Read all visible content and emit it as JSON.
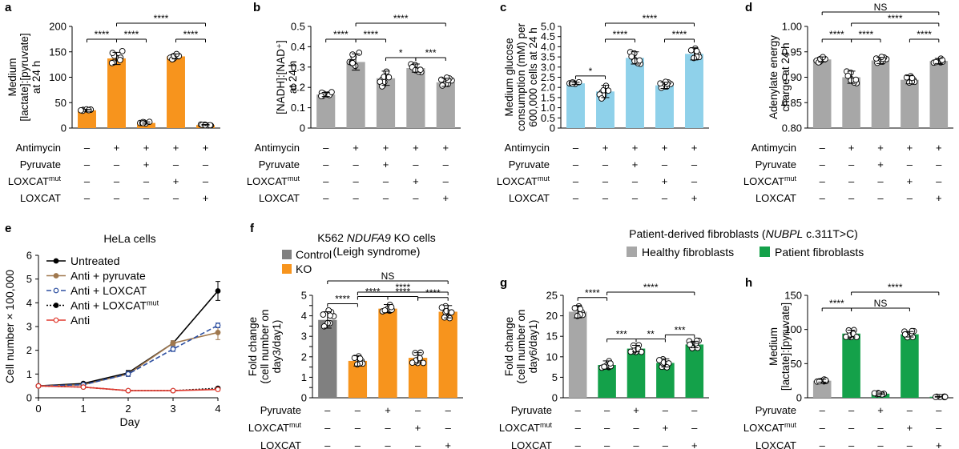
{
  "colors": {
    "orange": "#F7941D",
    "gray": "#A7A7A7",
    "dark_gray": "#808080",
    "blue": "#8FD1EA",
    "green": "#14A14A",
    "line_red": "#E03A2F",
    "line_brown": "#A0784E",
    "line_blue": "#2D4FA0"
  },
  "top_conditions": {
    "rows": [
      "Antimycin",
      "Pyruvate",
      "LOXCAT",
      "LOXCAT"
    ],
    "row_sup": [
      "",
      "",
      "mut",
      ""
    ],
    "signs": [
      [
        "–",
        "+",
        "+",
        "+",
        "+"
      ],
      [
        "–",
        "–",
        "+",
        "–",
        "–"
      ],
      [
        "–",
        "–",
        "–",
        "+",
        "–"
      ],
      [
        "–",
        "–",
        "–",
        "–",
        "+"
      ]
    ]
  },
  "bottom_conditions": {
    "rows": [
      "Pyruvate",
      "LOXCAT",
      "LOXCAT"
    ],
    "row_sup": [
      "",
      "mut",
      ""
    ],
    "signs": [
      [
        "–",
        "–",
        "+",
        "–",
        "–"
      ],
      [
        "–",
        "–",
        "–",
        "+",
        "–"
      ],
      [
        "–",
        "–",
        "–",
        "–",
        "+"
      ]
    ]
  },
  "chart_data": [
    {
      "panel": "a",
      "type": "bar",
      "ylabel_lines": [
        "Medium",
        "[lactate]:[pyruvate]",
        "at 24 h"
      ],
      "ylim": [
        0,
        200
      ],
      "yticks": [
        0,
        50,
        100,
        150,
        200
      ],
      "values": [
        35,
        137,
        10,
        141,
        6
      ],
      "errors": [
        2,
        12,
        2,
        5,
        1
      ],
      "colors": [
        "orange",
        "orange",
        "orange",
        "orange",
        "orange"
      ],
      "significance": [
        {
          "from": 0,
          "to": 1,
          "label": "****",
          "level": 0
        },
        {
          "from": 1,
          "to": 2,
          "label": "****",
          "level": 0
        },
        {
          "from": 3,
          "to": 4,
          "label": "****",
          "level": 0
        },
        {
          "from": 1,
          "to": 4,
          "label": "****",
          "level": 1
        }
      ]
    },
    {
      "panel": "b",
      "type": "bar",
      "ylabel_lines": [
        "[NADH]:[NAD⁺]",
        "at 24 h"
      ],
      "ylim": [
        0,
        0.5
      ],
      "yticks": [
        0,
        0.1,
        0.2,
        0.3,
        0.4,
        0.5
      ],
      "values": [
        0.165,
        0.325,
        0.245,
        0.295,
        0.225
      ],
      "errors": [
        0.01,
        0.04,
        0.035,
        0.02,
        0.02
      ],
      "colors": [
        "gray",
        "gray",
        "gray",
        "gray",
        "gray"
      ],
      "significance": [
        {
          "from": 0,
          "to": 1,
          "label": "****",
          "level": 0
        },
        {
          "from": 1,
          "to": 2,
          "label": "****",
          "level": 0
        },
        {
          "from": 2,
          "to": 3,
          "label": "*",
          "level": -1
        },
        {
          "from": 3,
          "to": 4,
          "label": "***",
          "level": -2
        },
        {
          "from": 1,
          "to": 4,
          "label": "****",
          "level": 1
        }
      ]
    },
    {
      "panel": "c",
      "type": "bar",
      "ylabel_lines": [
        "Medium glucose",
        "consumption (mM) per",
        "600,000 cells at 24 h"
      ],
      "ylim": [
        0,
        5
      ],
      "yticks": [
        0,
        0.5,
        1,
        1.5,
        2,
        2.5,
        3,
        3.5,
        4,
        4.5,
        5
      ],
      "ytick_labels": [
        "0",
        "0.5",
        "1.0",
        "1.5",
        "2.0",
        "2.5",
        "3.0",
        "3.5",
        "4.0",
        "4.5",
        "5.0"
      ],
      "values": [
        2.2,
        1.8,
        3.45,
        2.1,
        3.65
      ],
      "errors": [
        0.05,
        0.3,
        0.3,
        0.15,
        0.3
      ],
      "colors": [
        "blue",
        "blue",
        "blue",
        "blue",
        "blue"
      ],
      "significance": [
        {
          "from": 0,
          "to": 1,
          "label": "*",
          "level": -1
        },
        {
          "from": 1,
          "to": 2,
          "label": "****",
          "level": 0
        },
        {
          "from": 3,
          "to": 4,
          "label": "****",
          "level": 0
        },
        {
          "from": 1,
          "to": 4,
          "label": "****",
          "level": 1
        }
      ]
    },
    {
      "panel": "d",
      "type": "bar",
      "ylabel_lines": [
        "Adenylate energy",
        "charge at 24 h"
      ],
      "ylim": [
        0.8,
        1.0
      ],
      "yticks": [
        0.8,
        0.85,
        0.9,
        0.95,
        1.0
      ],
      "ytick_labels": [
        "0.80",
        "0.85",
        "0.90",
        "0.95",
        "1.00"
      ],
      "values": [
        0.935,
        0.9,
        0.933,
        0.895,
        0.932
      ],
      "errors": [
        0.005,
        0.012,
        0.006,
        0.008,
        0.005
      ],
      "colors": [
        "gray",
        "gray",
        "gray",
        "gray",
        "gray"
      ],
      "significance": [
        {
          "from": 0,
          "to": 1,
          "label": "****",
          "level": 0
        },
        {
          "from": 1,
          "to": 2,
          "label": "****",
          "level": 0
        },
        {
          "from": 3,
          "to": 4,
          "label": "****",
          "level": 0
        },
        {
          "from": 1,
          "to": 4,
          "label": "****",
          "level": 1
        },
        {
          "from": 0,
          "to": 4,
          "label": "NS",
          "level": 2
        }
      ]
    },
    {
      "panel": "e",
      "type": "line",
      "title": "HeLa cells",
      "xlabel": "Day",
      "ylabel": "Cell number × 100,000",
      "x": [
        0,
        1,
        2,
        3,
        4
      ],
      "xlim": [
        0,
        4
      ],
      "ylim": [
        0,
        6
      ],
      "yticks": [
        0,
        1,
        2,
        3,
        4,
        5,
        6
      ],
      "series": [
        {
          "name": "Untreated",
          "values": [
            0.5,
            0.6,
            1.05,
            2.3,
            4.5
          ],
          "errors": [
            0,
            0.05,
            0.1,
            0.1,
            0.4
          ],
          "color": "#000000",
          "dash": "",
          "marker": "filled"
        },
        {
          "name": "Anti + pyruvate",
          "values": [
            0.5,
            0.55,
            1.0,
            2.3,
            2.75
          ],
          "errors": [
            0,
            0.05,
            0.1,
            0.1,
            0.3
          ],
          "color": "line_brown",
          "dash": "",
          "marker": "filled"
        },
        {
          "name": "Anti + LOXCAT",
          "values": [
            0.5,
            0.55,
            1.0,
            2.05,
            3.05
          ],
          "errors": [
            0,
            0.05,
            0.1,
            0.1,
            0.1
          ],
          "color": "line_blue",
          "dash": "6,3",
          "marker": "open"
        },
        {
          "name": "Anti + LOXCAT",
          "name_sup": "mut",
          "values": [
            0.5,
            0.45,
            0.3,
            0.3,
            0.4
          ],
          "errors": [
            0,
            0.03,
            0.03,
            0.05,
            0.05
          ],
          "color": "#000000",
          "dash": "2,2",
          "marker": "filled"
        },
        {
          "name": "Anti",
          "values": [
            0.5,
            0.45,
            0.3,
            0.3,
            0.35
          ],
          "errors": [
            0,
            0.03,
            0.03,
            0.05,
            0.05
          ],
          "color": "line_red",
          "dash": "",
          "marker": "open"
        }
      ]
    },
    {
      "panel": "f",
      "type": "bar",
      "title_lines": [
        "K562 NDUFA9 KO cells",
        "(Leigh syndrome)"
      ],
      "title_italic": "NDUFA9",
      "legend": [
        {
          "label": "Control",
          "color": "dark_gray"
        },
        {
          "label": "KO",
          "color": "orange"
        }
      ],
      "ylabel_lines": [
        "Fold change",
        "(cell number on",
        "day3/day1)"
      ],
      "ylim": [
        0,
        5
      ],
      "yticks": [
        0,
        0.5,
        1,
        1.5,
        2,
        2.5,
        3,
        3.5,
        4,
        4.5,
        5
      ],
      "ytick_labels": [
        "0",
        "",
        "1",
        "",
        "2",
        "",
        "3",
        "",
        "4",
        "",
        "5"
      ],
      "values": [
        3.8,
        1.8,
        4.35,
        1.95,
        4.2
      ],
      "errors": [
        0.4,
        0.25,
        0.2,
        0.25,
        0.3
      ],
      "colors": [
        "dark_gray",
        "orange",
        "orange",
        "orange",
        "orange"
      ],
      "significance": [
        {
          "from": 0,
          "to": 1,
          "label": "****",
          "level": 0
        },
        {
          "from": 1,
          "to": 2,
          "label": "****",
          "level": 0
        },
        {
          "from": 2,
          "to": 3,
          "label": "****",
          "level": 0
        },
        {
          "from": 3,
          "to": 4,
          "label": "****",
          "level": 0
        },
        {
          "from": 1,
          "to": 4,
          "label": "****",
          "level": 1
        },
        {
          "from": 0,
          "to": 4,
          "label": "NS",
          "level": 2
        }
      ]
    },
    {
      "panel": "g",
      "type": "bar",
      "ylabel_lines": [
        "Fold change",
        "(cell number on",
        "day6/day1)"
      ],
      "ylim": [
        0,
        25
      ],
      "yticks": [
        0,
        5,
        10,
        15,
        20,
        25
      ],
      "values": [
        21,
        8,
        12,
        8.5,
        13
      ],
      "errors": [
        1.5,
        1.0,
        0.8,
        1.0,
        0.8
      ],
      "colors": [
        "gray",
        "green",
        "green",
        "green",
        "green"
      ],
      "significance": [
        {
          "from": 0,
          "to": 1,
          "label": "****",
          "level": 0
        },
        {
          "from": 1,
          "to": 2,
          "label": "***",
          "level": -1
        },
        {
          "from": 2,
          "to": 3,
          "label": "**",
          "level": -1
        },
        {
          "from": 3,
          "to": 4,
          "label": "***",
          "level": -2
        },
        {
          "from": 1,
          "to": 4,
          "label": "****",
          "level": 1
        }
      ]
    },
    {
      "panel": "h",
      "type": "bar",
      "ylabel_lines": [
        "Medium",
        "[lactate]:[pyruvate]"
      ],
      "ylim": [
        0,
        150
      ],
      "yticks": [
        0,
        50,
        100,
        150
      ],
      "values": [
        25,
        94,
        6,
        93,
        1.5
      ],
      "errors": [
        2,
        5,
        1,
        4,
        0.5
      ],
      "colors": [
        "gray",
        "green",
        "green",
        "green",
        "green"
      ],
      "significance": [
        {
          "from": 0,
          "to": 1,
          "label": "****",
          "level": 0
        },
        {
          "from": 1,
          "to": 3,
          "label": "NS",
          "level": 0
        },
        {
          "from": 1,
          "to": 4,
          "label": "****",
          "level": 1
        }
      ]
    }
  ],
  "patient_header": {
    "title_prefix": "Patient-derived fibroblasts (",
    "title_italic": "NUBPL",
    "title_suffix": " c.311T>C)",
    "legend": [
      {
        "label": "Healthy fibroblasts",
        "color": "gray"
      },
      {
        "label": "Patient fibroblasts",
        "color": "green"
      }
    ]
  }
}
